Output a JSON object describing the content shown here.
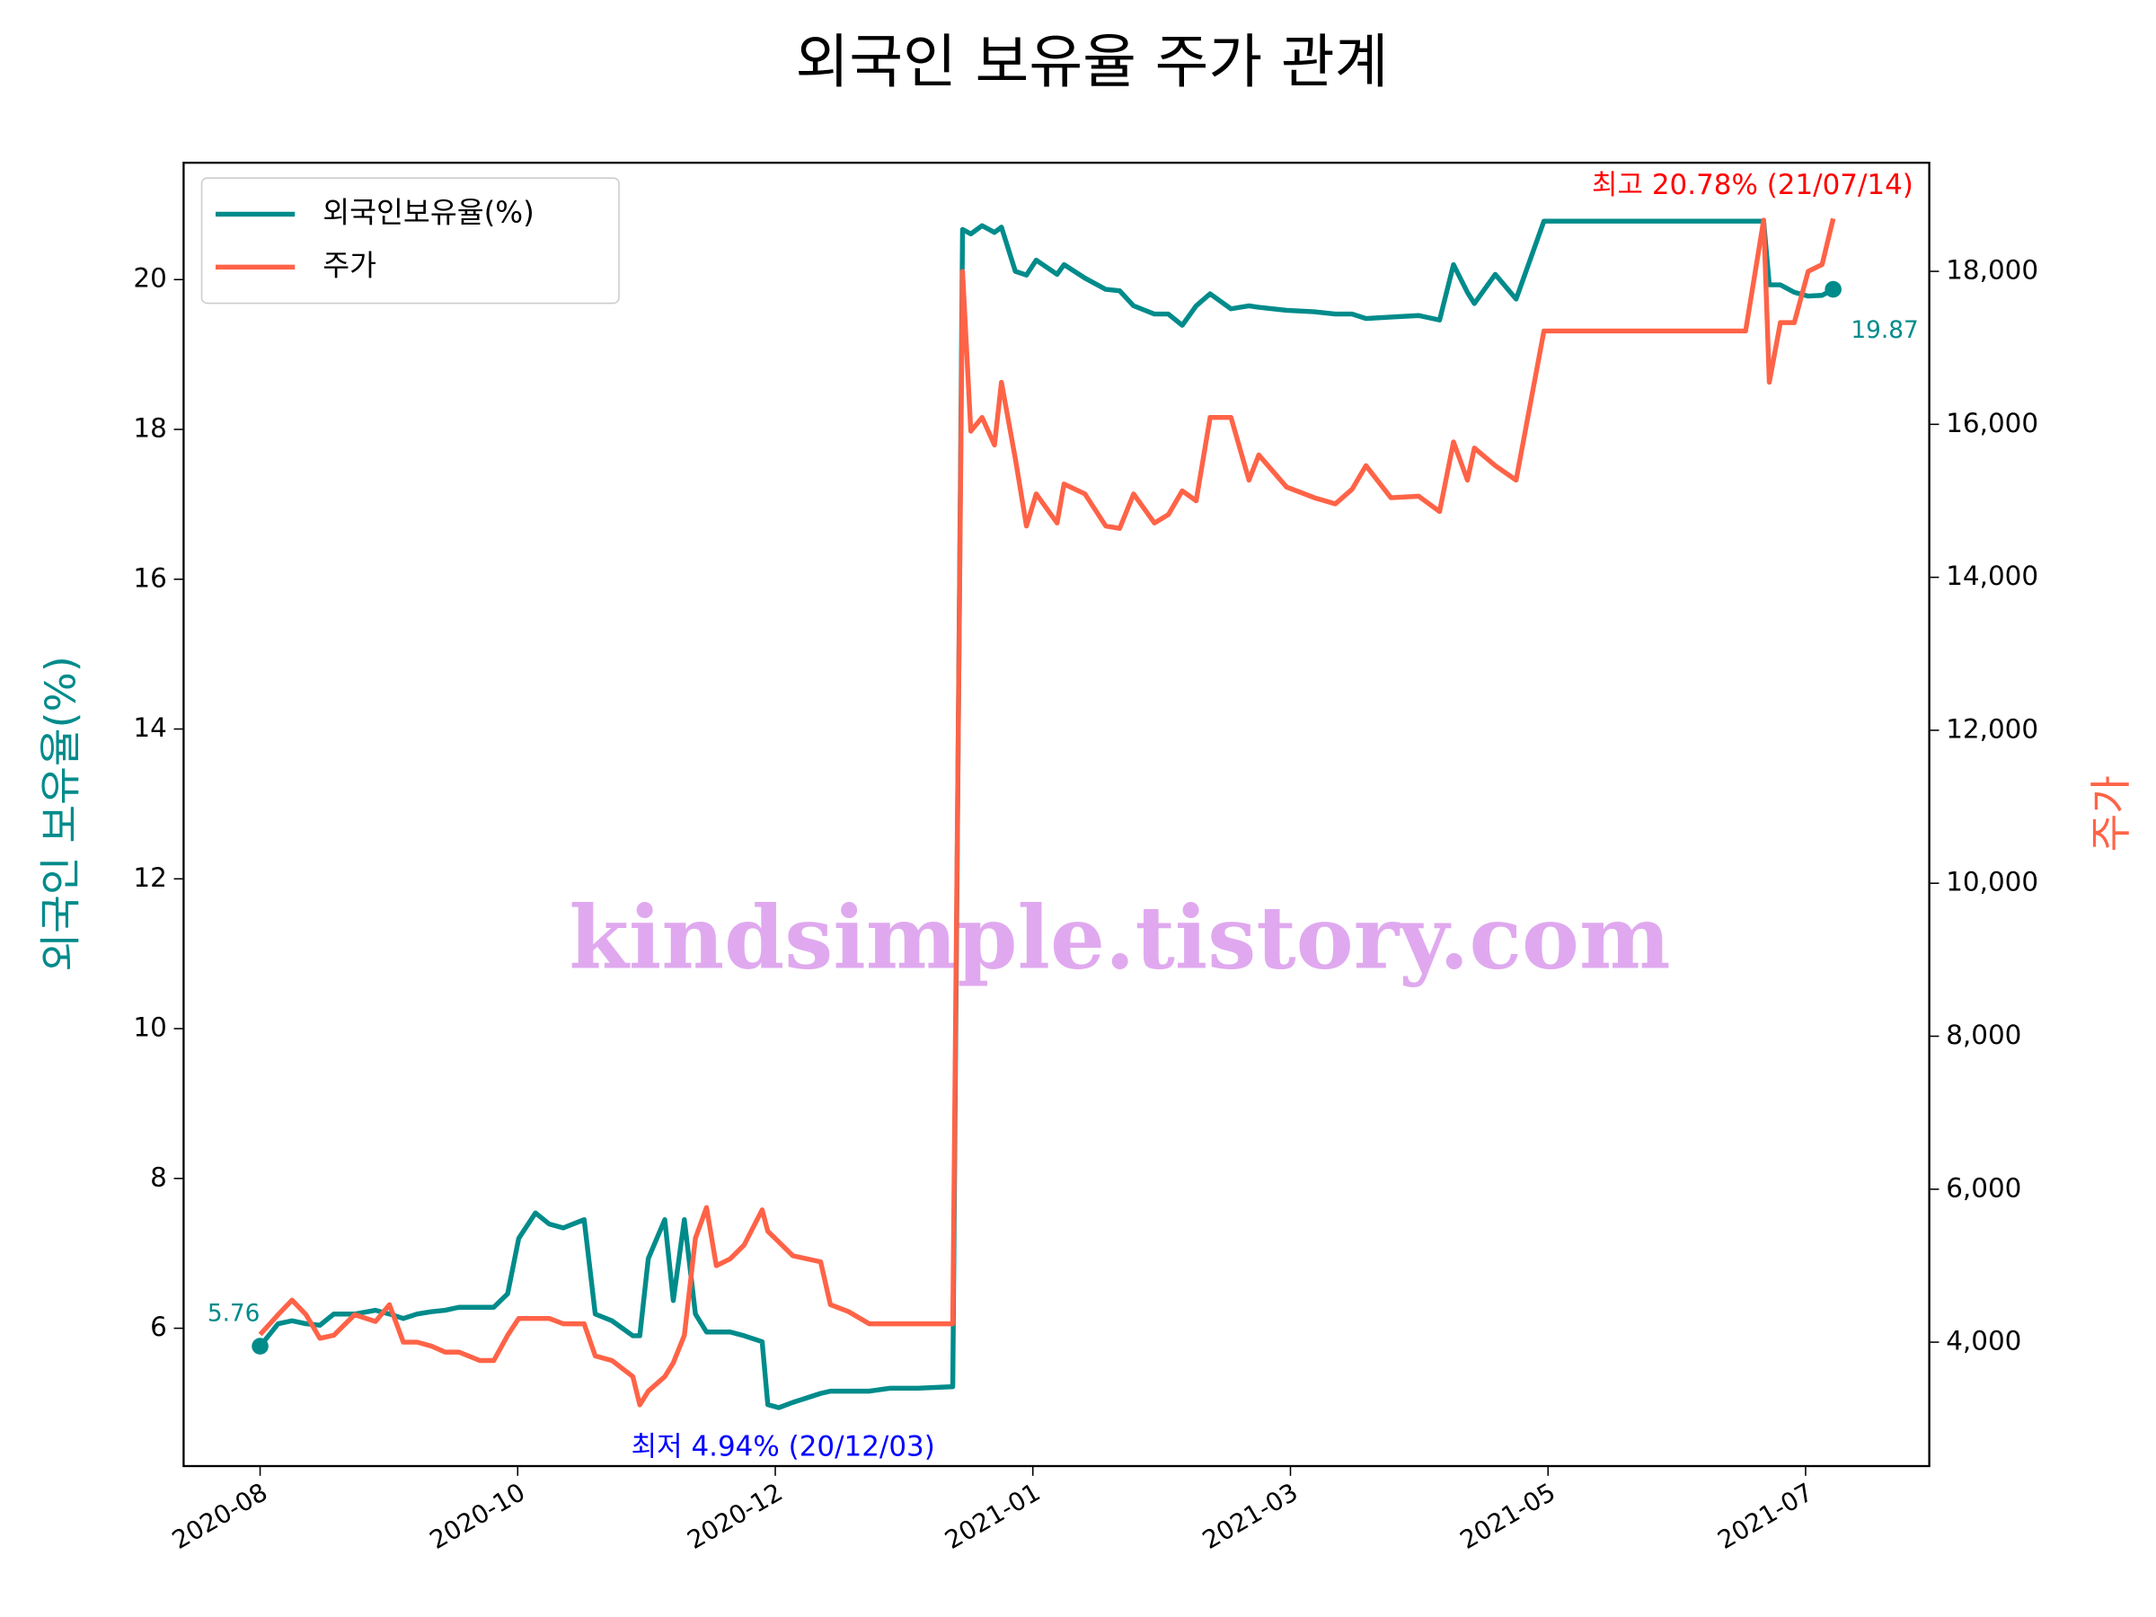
{
  "chart_data": {
    "type": "line",
    "title": "외국인 보유율 주가 관계",
    "y_label": "외국인 보유율(%)",
    "y2_label": "주가",
    "watermark": "kindsimple.tistory.com",
    "legend": "upper left",
    "grid": false,
    "xlim": [
      -0.297,
      6.48
    ],
    "xticks": [
      {
        "value": 0,
        "label": "2020-08"
      },
      {
        "value": 1,
        "label": "2020-10"
      },
      {
        "value": 2,
        "label": "2020-12"
      },
      {
        "value": 3,
        "label": "2021-01"
      },
      {
        "value": 4,
        "label": "2021-03"
      },
      {
        "value": 5,
        "label": "2021-05"
      },
      {
        "value": 6,
        "label": "2021-07"
      }
    ],
    "ylim": [
      4.16,
      21.56
    ],
    "yticks": [
      6,
      8,
      10,
      12,
      14,
      16,
      18,
      20
    ],
    "y2lim": [
      2380,
      19420
    ],
    "y2ticks": [
      {
        "value": 4000,
        "label": "4,000"
      },
      {
        "value": 6000,
        "label": "6,000"
      },
      {
        "value": 8000,
        "label": "8,000"
      },
      {
        "value": 10000,
        "label": "10,000"
      },
      {
        "value": 12000,
        "label": "12,000"
      },
      {
        "value": 14000,
        "label": "14,000"
      },
      {
        "value": 16000,
        "label": "16,000"
      },
      {
        "value": 18000,
        "label": "18,000"
      }
    ],
    "x": [
      0,
      0.07,
      0.124,
      0.178,
      0.232,
      0.286,
      0.367,
      0.448,
      0.502,
      0.556,
      0.61,
      0.664,
      0.718,
      0.772,
      0.853,
      0.907,
      0.961,
      1.004,
      1.069,
      1.123,
      1.177,
      1.258,
      1.301,
      1.366,
      1.447,
      1.474,
      1.507,
      1.571,
      1.604,
      1.647,
      1.69,
      1.733,
      1.771,
      1.825,
      1.879,
      1.949,
      1.971,
      2.014,
      2.068,
      2.122,
      2.176,
      2.214,
      2.284,
      2.365,
      2.446,
      2.554,
      2.689,
      2.727,
      2.759,
      2.803,
      2.851,
      2.878,
      2.932,
      2.975,
      3.013,
      3.094,
      3.121,
      3.202,
      3.283,
      3.337,
      3.391,
      3.472,
      3.526,
      3.58,
      3.634,
      3.688,
      3.769,
      3.839,
      3.877,
      3.985,
      4.093,
      4.174,
      4.239,
      4.293,
      4.39,
      4.498,
      4.579,
      4.633,
      4.687,
      4.714,
      4.795,
      4.876,
      4.984,
      5.416,
      5.767,
      5.837,
      5.859,
      5.902,
      5.956,
      6.01,
      6.064,
      6.107
    ],
    "series": [
      {
        "name": "외국인보유율(%)",
        "color": "#008b8b",
        "axis": "y",
        "values": [
          5.76,
          6.06,
          6.1,
          6.06,
          6.04,
          6.19,
          6.19,
          6.24,
          6.19,
          6.13,
          6.19,
          6.22,
          6.24,
          6.28,
          6.28,
          6.28,
          6.46,
          7.2,
          7.54,
          7.39,
          7.34,
          7.45,
          6.19,
          6.1,
          5.9,
          5.9,
          6.93,
          7.45,
          6.37,
          7.45,
          6.19,
          5.95,
          5.95,
          5.95,
          5.9,
          5.82,
          4.98,
          4.94,
          5.01,
          5.07,
          5.13,
          5.16,
          5.16,
          5.16,
          5.2,
          5.2,
          5.22,
          20.67,
          20.61,
          20.72,
          20.63,
          20.7,
          20.11,
          20.06,
          20.26,
          20.07,
          20.2,
          20.02,
          19.87,
          19.85,
          19.65,
          19.54,
          19.54,
          19.39,
          19.65,
          19.81,
          19.61,
          19.65,
          19.63,
          19.59,
          19.57,
          19.54,
          19.54,
          19.48,
          19.5,
          19.52,
          19.46,
          20.2,
          19.83,
          19.68,
          20.07,
          19.74,
          20.78,
          20.78,
          20.78,
          20.78,
          19.93,
          19.93,
          19.83,
          19.78,
          19.79,
          19.87
        ]
      },
      {
        "name": "주가",
        "color": "#ff6347",
        "axis": "y2",
        "values": [
          4100,
          4360,
          4550,
          4360,
          4050,
          4090,
          4360,
          4270,
          4490,
          4000,
          4000,
          3950,
          3870,
          3870,
          3760,
          3760,
          4090,
          4310,
          4310,
          4310,
          4240,
          4240,
          3820,
          3760,
          3550,
          3180,
          3360,
          3550,
          3730,
          4090,
          5360,
          5760,
          5000,
          5090,
          5270,
          5730,
          5450,
          5310,
          5130,
          5090,
          5050,
          4490,
          4400,
          4240,
          4240,
          4240,
          4240,
          18000,
          15910,
          16090,
          15730,
          16550,
          15550,
          14670,
          15090,
          14710,
          15220,
          15090,
          14670,
          14640,
          15090,
          14710,
          14820,
          15130,
          15000,
          16090,
          16090,
          15270,
          15600,
          15180,
          15040,
          14960,
          15150,
          15460,
          15040,
          15060,
          14860,
          15770,
          15270,
          15690,
          15460,
          15270,
          17220,
          17220,
          17220,
          18670,
          16550,
          17330,
          17330,
          18000,
          18090,
          18690
        ]
      }
    ],
    "annotations": [
      {
        "text": "5.76",
        "color": "#008b8b"
      },
      {
        "text": "19.87",
        "color": "#008b8b"
      },
      {
        "text": "최고 20.78% (21/07/14)",
        "color": "#ff0000"
      },
      {
        "text": "최저 4.94% (20/12/03)",
        "color": "#0000ff"
      }
    ]
  }
}
